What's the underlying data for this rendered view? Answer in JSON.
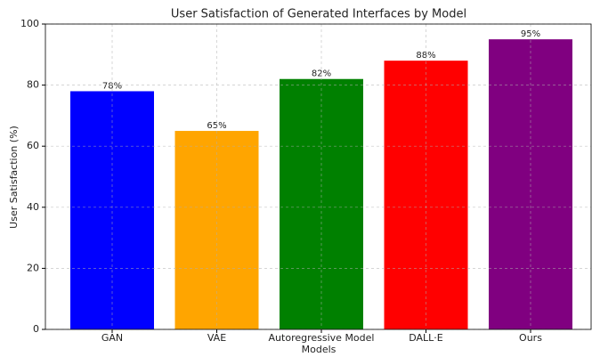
{
  "chart_data": {
    "type": "bar",
    "title": "User Satisfaction of Generated Interfaces by Model",
    "xlabel": "Models",
    "ylabel": "User Satisfaction (%)",
    "categories": [
      "GAN",
      "VAE",
      "Autoregressive Model",
      "DALL·E",
      "Ours"
    ],
    "values": [
      78,
      65,
      82,
      88,
      95
    ],
    "value_labels": [
      "78%",
      "65%",
      "82%",
      "88%",
      "95%"
    ],
    "colors": [
      "#0000ff",
      "#ffa500",
      "#008000",
      "#ff0000",
      "#800080"
    ],
    "ylim": [
      0,
      100
    ],
    "yticks": [
      0,
      20,
      40,
      60,
      80,
      100
    ],
    "grid": true
  }
}
